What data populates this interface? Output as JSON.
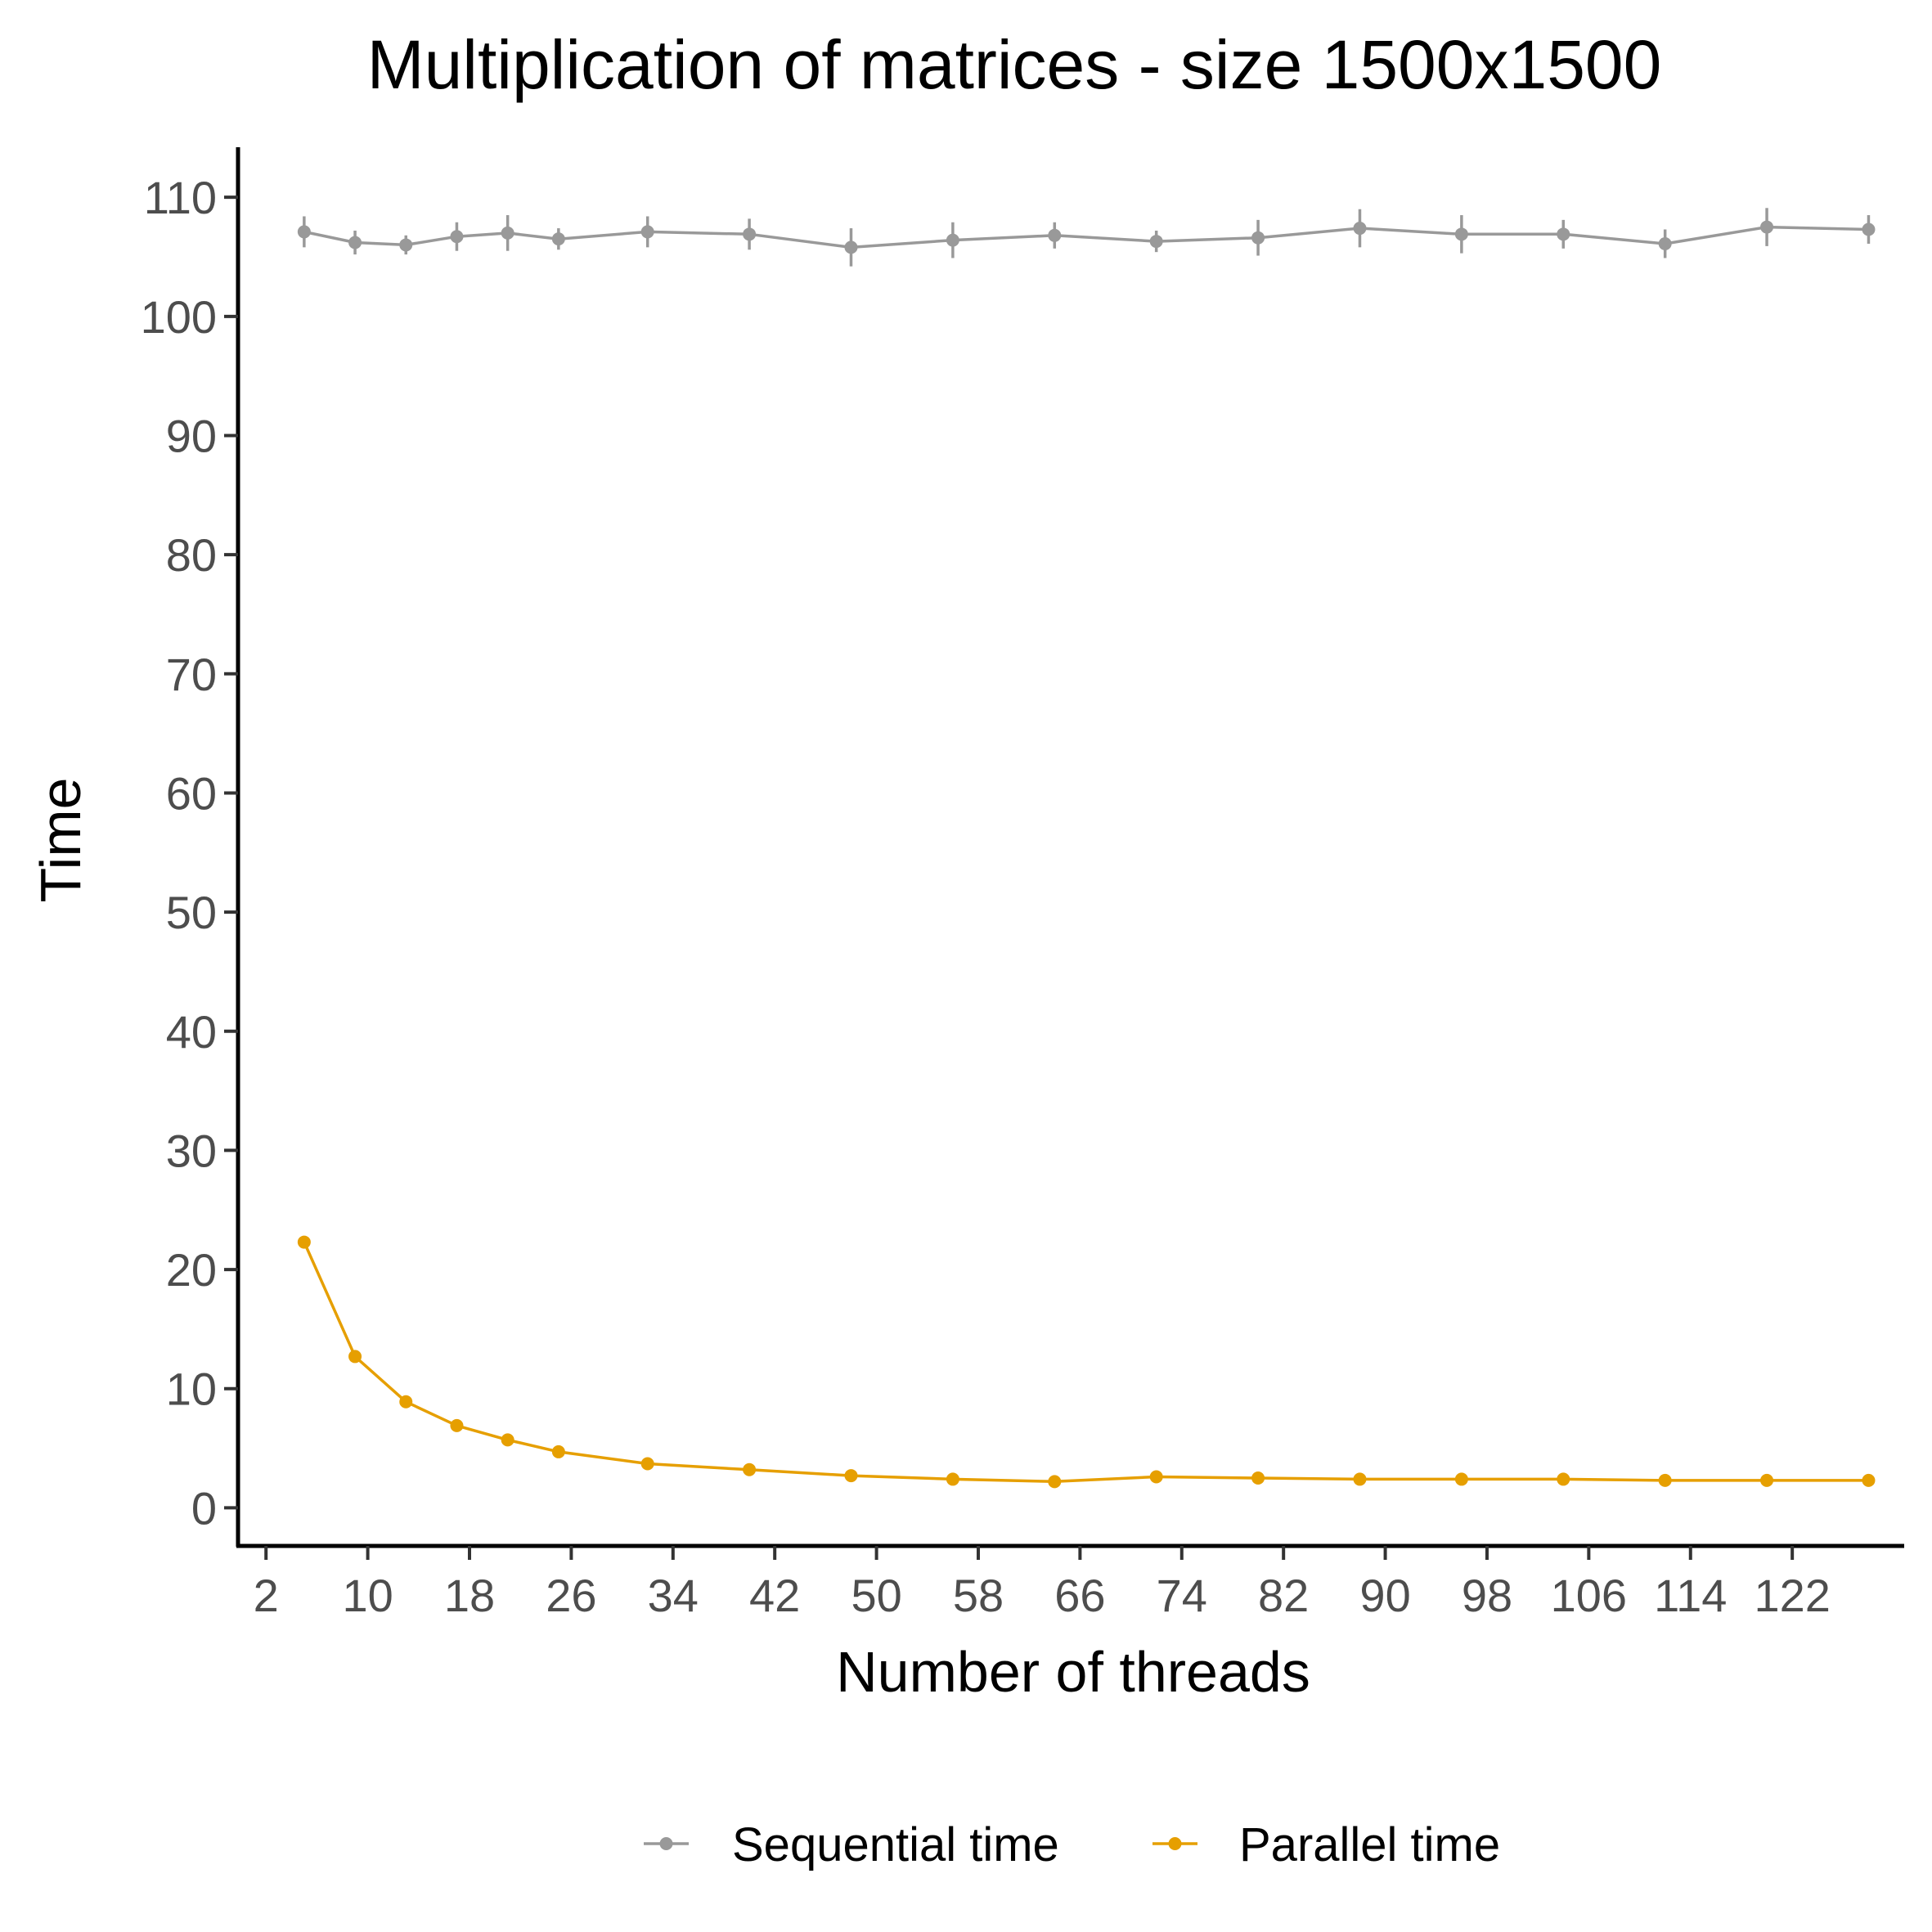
{
  "chart_data": {
    "type": "line",
    "title": "Multiplication of matrices - size 1500x1500",
    "xlabel": "Number of threads",
    "ylabel": "Time",
    "xlim": [
      -0.2,
      130.8
    ],
    "ylim": [
      -3.2,
      114.2
    ],
    "x_ticks": [
      2,
      10,
      18,
      26,
      34,
      42,
      50,
      58,
      66,
      74,
      82,
      90,
      98,
      106,
      114,
      122
    ],
    "y_ticks": [
      0,
      10,
      20,
      30,
      40,
      50,
      60,
      70,
      80,
      90,
      100,
      110
    ],
    "x": [
      5,
      9,
      13,
      17,
      21,
      25,
      32,
      40,
      48,
      56,
      64,
      72,
      80,
      88,
      96,
      104,
      112,
      120,
      128
    ],
    "series": [
      {
        "name": "Sequential time",
        "color": "#999999",
        "values": [
          107.1,
          106.2,
          106.0,
          106.7,
          107.0,
          106.5,
          107.1,
          106.9,
          105.8,
          106.4,
          106.8,
          106.3,
          106.6,
          107.4,
          106.9,
          106.9,
          106.1,
          107.5,
          107.3
        ],
        "error": [
          1.3,
          1.0,
          0.8,
          1.2,
          1.5,
          0.9,
          1.3,
          1.3,
          1.6,
          1.5,
          1.1,
          0.9,
          1.5,
          1.6,
          1.6,
          1.2,
          1.2,
          1.6,
          1.2
        ]
      },
      {
        "name": "Parallel time",
        "color": "#E69F00",
        "values": [
          22.3,
          12.7,
          8.9,
          6.9,
          5.7,
          4.7,
          3.7,
          3.2,
          2.7,
          2.4,
          2.2,
          2.6,
          2.5,
          2.4,
          2.4,
          2.4,
          2.3,
          2.3,
          2.3
        ],
        "error": [
          0.1,
          0.1,
          0.1,
          0.1,
          0.1,
          0.1,
          0.1,
          0.1,
          0.1,
          0.1,
          0.1,
          0.1,
          0.1,
          0.1,
          0.1,
          0.1,
          0.1,
          0.1,
          0.1
        ]
      }
    ],
    "grid": false,
    "legend_position": "bottom"
  }
}
